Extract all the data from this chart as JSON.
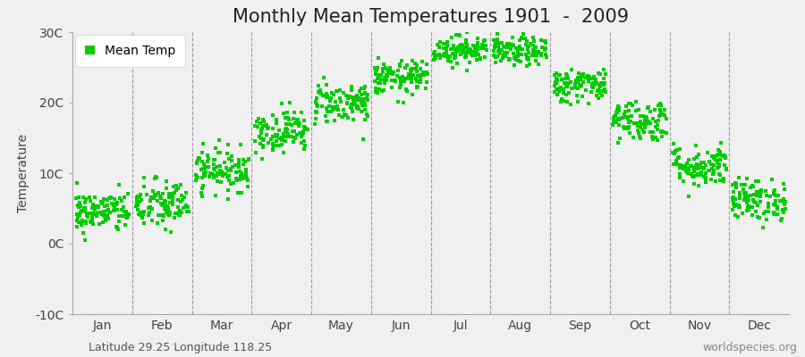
{
  "title": "Monthly Mean Temperatures 1901  -  2009",
  "ylabel": "Temperature",
  "ylim": [
    -10,
    30
  ],
  "yticks": [
    -10,
    0,
    10,
    20,
    30
  ],
  "ytick_labels": [
    "-10C",
    "0C",
    "10C",
    "20C",
    "30C"
  ],
  "month_labels": [
    "Jan",
    "Feb",
    "Mar",
    "Apr",
    "May",
    "Jun",
    "Jul",
    "Aug",
    "Sep",
    "Oct",
    "Nov",
    "Dec"
  ],
  "n_years": 109,
  "monthly_means": [
    4.5,
    5.5,
    10.5,
    16.0,
    20.0,
    23.5,
    27.5,
    27.2,
    22.5,
    17.5,
    11.0,
    6.2
  ],
  "monthly_stds": [
    1.5,
    1.8,
    1.5,
    1.5,
    1.5,
    1.2,
    1.0,
    1.0,
    1.2,
    1.5,
    1.5,
    1.5
  ],
  "marker_color": "#00cc00",
  "marker": "s",
  "marker_size": 3.5,
  "fig_bg_color": "#f0f0f0",
  "plot_bg_color": "#f0f0f0",
  "legend_label": "Mean Temp",
  "bottom_left_text": "Latitude 29.25 Longitude 118.25",
  "bottom_right_text": "worldspecies.org",
  "title_fontsize": 15,
  "axis_label_fontsize": 10,
  "tick_fontsize": 10,
  "annotation_fontsize": 9,
  "vline_color": "#777777",
  "spine_color": "#aaaaaa"
}
